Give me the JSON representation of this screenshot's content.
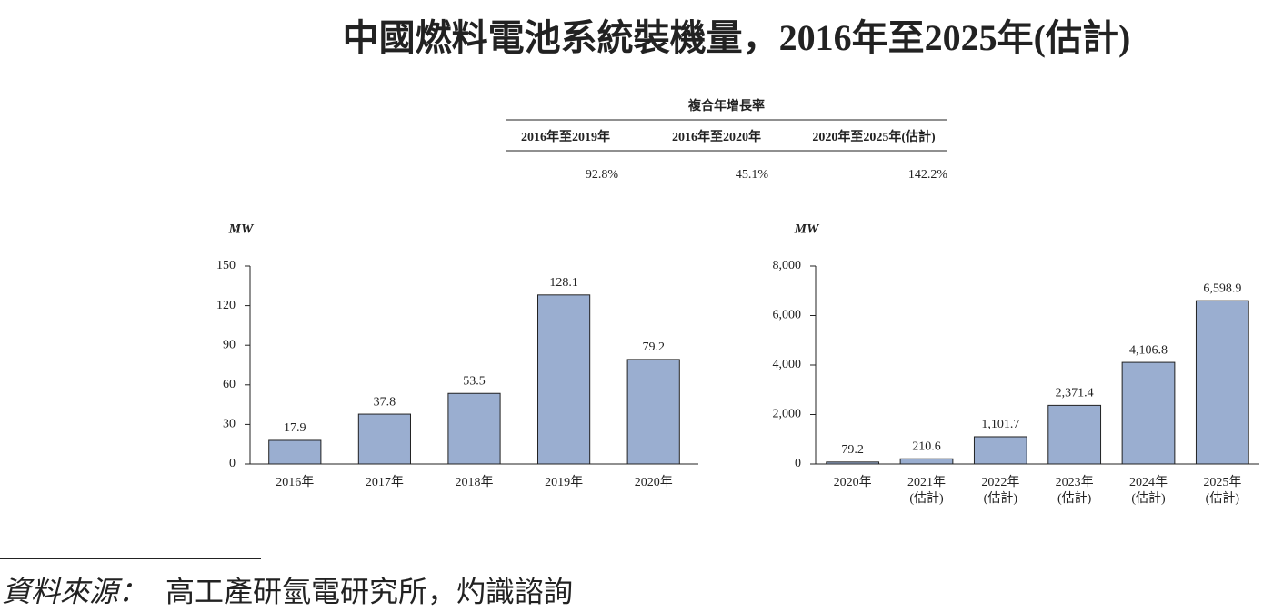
{
  "title": "中國燃料電池系統裝機量，2016年至2025年(估計)",
  "cagr_table": {
    "header": "複合年增長率",
    "columns": [
      "2016年至2019年",
      "2016年至2020年",
      "2020年至2025年(估計)"
    ],
    "values": [
      "92.8%",
      "45.1%",
      "142.2%"
    ]
  },
  "chart_data": [
    {
      "type": "bar",
      "y_label": "MW",
      "color": "#9aaed0",
      "categories": [
        "2016年",
        "2017年",
        "2018年",
        "2019年",
        "2020年"
      ],
      "values": [
        17.9,
        37.8,
        53.5,
        128.1,
        79.2
      ],
      "ylim": [
        0,
        150
      ],
      "yticks": [
        0,
        30,
        60,
        90,
        120,
        150
      ]
    },
    {
      "type": "bar",
      "y_label": "MW",
      "color": "#9aaed0",
      "categories": [
        "2020年",
        "2021年\n(估計)",
        "2022年\n(估計)",
        "2023年\n(估計)",
        "2024年\n(估計)",
        "2025年\n(估計)"
      ],
      "values": [
        79.2,
        210.6,
        1101.7,
        2371.4,
        4106.8,
        6598.9
      ],
      "value_labels": [
        "79.2",
        "210.6",
        "1,101.7",
        "2,371.4",
        "4,106.8",
        "6,598.9"
      ],
      "ylim": [
        0,
        8000
      ],
      "yticks": [
        0,
        {
          "value": 2000,
          "label": "2,000"
        },
        {
          "value": 4000,
          "label": "4,000"
        },
        {
          "value": 6000,
          "label": "6,000"
        },
        {
          "value": 8000,
          "label": "8,000"
        }
      ]
    }
  ],
  "source": {
    "label": "資料來源：",
    "text": "高工產研氫電研究所，灼識諮詢"
  }
}
